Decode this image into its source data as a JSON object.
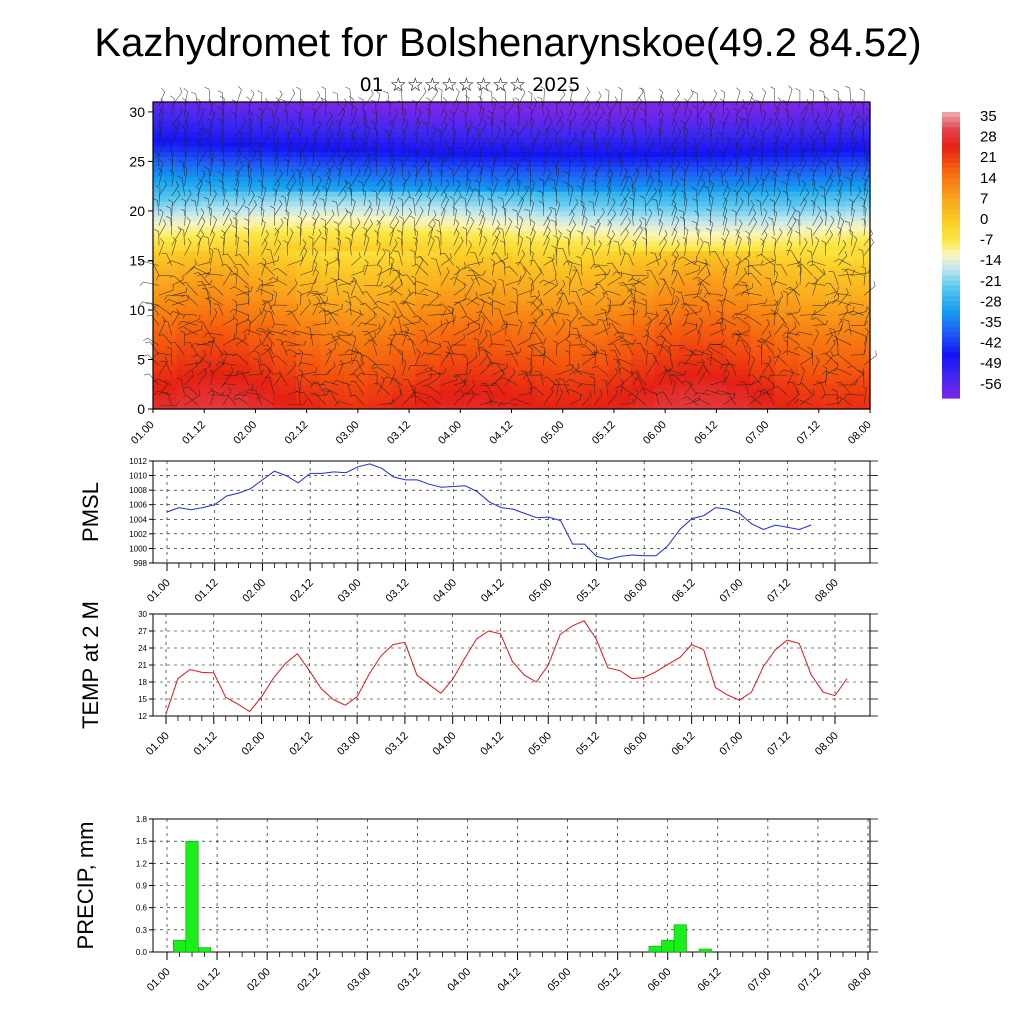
{
  "title": "Kazhydromet for Bolshenarynskoe(49.2 84.52)",
  "subtitle": "01 ☆☆☆☆☆☆☆☆ 2025",
  "time_ticks": [
    "01.00",
    "01.12",
    "02.00",
    "02.12",
    "03.00",
    "03.12",
    "04.00",
    "04.12",
    "05.00",
    "05.12",
    "06.00",
    "06.12",
    "07.00",
    "07.12",
    "08.00"
  ],
  "chart_data": [
    {
      "type": "heatmap",
      "name": "upper-air temperature cross-section with wind barbs",
      "x_ticks": [
        "01.00",
        "01.12",
        "02.00",
        "02.12",
        "03.00",
        "03.12",
        "04.00",
        "04.12",
        "05.00",
        "05.12",
        "06.00",
        "06.12",
        "07.00",
        "07.12",
        "08.00"
      ],
      "y_ticks": [
        0,
        5,
        10,
        15,
        20,
        25,
        30
      ],
      "ylim": [
        0,
        31
      ],
      "colorbar_labels": [
        35,
        28,
        21,
        14,
        7,
        0,
        -7,
        -14,
        -21,
        -28,
        -35,
        -42,
        -49,
        -56
      ],
      "colorbar_range": [
        -60,
        38
      ],
      "levels": [
        0,
        2,
        4,
        6,
        8,
        10,
        12,
        14,
        16,
        18,
        20,
        22,
        24,
        26,
        28,
        30,
        31
      ],
      "temperature_profile": [
        27,
        25,
        22,
        19,
        16,
        12,
        8,
        4,
        -2,
        -9,
        -17,
        -25,
        -33,
        -41,
        -48,
        -54,
        -57
      ],
      "shading_note": "warm (red/orange) near ground, yellow near level 15, cyan near 18-20, blue/violet aloft"
    },
    {
      "type": "line",
      "ylabel": "PMSL",
      "yticks": [
        998,
        1000,
        1002,
        1004,
        1006,
        1008,
        1010,
        1012
      ],
      "ylim": [
        998,
        1012
      ],
      "color": "#1f2bd8",
      "x_step_hours": 3,
      "values": [
        1005,
        1005.6,
        1005.3,
        1005.6,
        1006,
        1007.2,
        1007.6,
        1008.2,
        1009.4,
        1010.6,
        1010,
        1009,
        1010.3,
        1010.3,
        1010.5,
        1010.4,
        1011.2,
        1011.6,
        1011,
        1009.8,
        1009.4,
        1009.4,
        1008.8,
        1008.4,
        1008.5,
        1008.6,
        1007.8,
        1006.4,
        1005.6,
        1005.4,
        1004.8,
        1004.2,
        1004.3,
        1003.8,
        1000.6,
        1000.6,
        998.9,
        998.5,
        998.9,
        999.1,
        999,
        999,
        1000.4,
        1002.6,
        1004.1,
        1004.5,
        1005.6,
        1005.4,
        1004.8,
        1003.4,
        1002.6,
        1003.2,
        1002.9,
        1002.6,
        1003.2
      ]
    },
    {
      "type": "line",
      "ylabel": "TEMP at 2 M",
      "yticks": [
        12,
        15,
        18,
        21,
        24,
        27,
        30
      ],
      "ylim": [
        12,
        30
      ],
      "color": "#e0161a",
      "x_step_hours": 3,
      "values": [
        12.4,
        18.6,
        20.2,
        19.7,
        19.6,
        15.3,
        14.1,
        12.8,
        15.4,
        18.7,
        21.3,
        23,
        20,
        16.8,
        14.9,
        13.9,
        15.4,
        19.4,
        22.6,
        24.6,
        25,
        19.2,
        17.6,
        16,
        18.5,
        22.2,
        25.6,
        27,
        26.5,
        21.6,
        19.2,
        18,
        21,
        26.4,
        27.9,
        28.8,
        25.6,
        20.5,
        20,
        18.6,
        18.8,
        19.8,
        21.1,
        22.3,
        24.6,
        23.7,
        17,
        15.7,
        14.8,
        16.2,
        20.7,
        23.7,
        25.4,
        24.8,
        19.3,
        16.2,
        15.6,
        18.6
      ]
    },
    {
      "type": "bar",
      "ylabel": "PRECIP, mm",
      "yticks": [
        "0.0",
        "0.3",
        "0.6",
        "0.9",
        "1.2",
        "1.5",
        "1.8"
      ],
      "ylim": [
        0,
        1.8
      ],
      "color": "#19f019",
      "bar_step_hours": 3,
      "bars": [
        {
          "x_hours": 3,
          "value": 0.16
        },
        {
          "x_hours": 6,
          "value": 1.5
        },
        {
          "x_hours": 9,
          "value": 0.06
        },
        {
          "x_hours": 117,
          "value": 0.08
        },
        {
          "x_hours": 120,
          "value": 0.16
        },
        {
          "x_hours": 123,
          "value": 0.37
        },
        {
          "x_hours": 129,
          "value": 0.04
        }
      ]
    }
  ]
}
